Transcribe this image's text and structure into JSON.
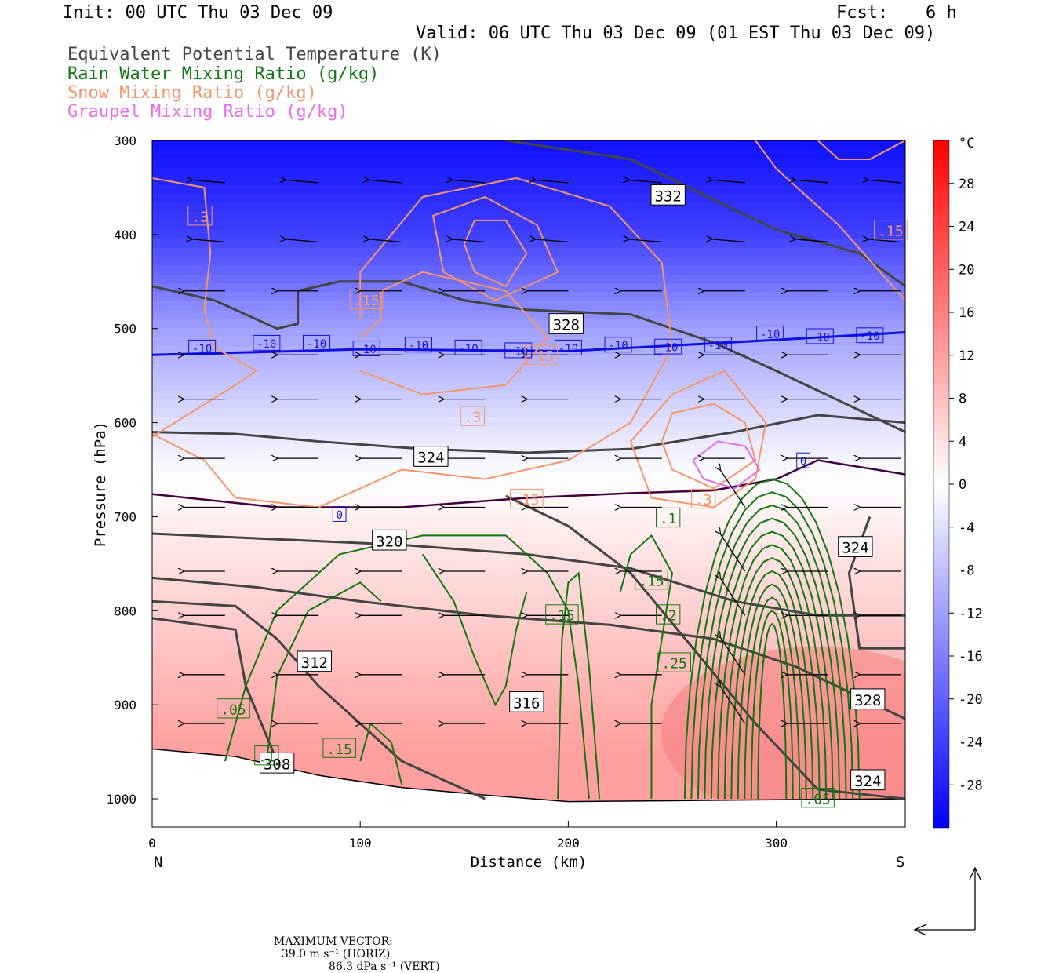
{
  "header": {
    "init": "Init: 00 UTC Thu 03 Dec 09",
    "fcst_label": "Fcst:",
    "fcst_value": "6 h",
    "valid": "Valid: 06 UTC Thu 03 Dec 09 (01 EST Thu 03 Dec 09)",
    "legend": [
      {
        "text": "Equivalent Potential Temperature (K)",
        "color": "#444444"
      },
      {
        "text": "Rain Water Mixing Ratio (g/kg)",
        "color": "#117711"
      },
      {
        "text": "Snow Mixing Ratio (g/kg)",
        "color": "#f4956a"
      },
      {
        "text": "Graupel Mixing Ratio (g/kg)",
        "color": "#e86ee8"
      }
    ]
  },
  "footer": {
    "max_vector_label": "MAXIMUM VECTOR:",
    "horiz": "39.0 m s⁻¹ (HORIZ)",
    "vert": "86.3 dPa s⁻¹ (VERT)"
  },
  "chart_data": {
    "type": "cross-section",
    "xlabel": "Distance (km)",
    "ylabel": "Pressure (hPa)",
    "xlim": [
      0,
      362
    ],
    "ylim": [
      1030,
      300
    ],
    "x_ticks": [
      0,
      100,
      200,
      300
    ],
    "y_ticks": [
      300,
      400,
      500,
      600,
      700,
      800,
      900,
      1000
    ],
    "x_end_labels": {
      "left": "N",
      "right": "S"
    },
    "colorbar": {
      "unit": "°C",
      "range": [
        -32,
        32
      ],
      "tick_labels": [
        "28",
        "24",
        "20",
        "16",
        "12",
        "8",
        "4",
        "0",
        "-4",
        "-8",
        "-12",
        "-16",
        "-20",
        "-24",
        "-28"
      ],
      "tick_values": [
        28,
        24,
        20,
        16,
        12,
        8,
        4,
        0,
        -4,
        -8,
        -12,
        -16,
        -20,
        -24,
        -28
      ],
      "cold_color": "#0000ff",
      "warm_color": "#ff0000"
    },
    "temperature_fill_layers": [
      {
        "p": 300,
        "t": -30
      },
      {
        "p": 400,
        "t": -24
      },
      {
        "p": 500,
        "t": -12
      },
      {
        "p": 600,
        "t": -4
      },
      {
        "p": 660,
        "t": 0
      },
      {
        "p": 750,
        "t": 4
      },
      {
        "p": 850,
        "t": 8
      },
      {
        "p": 950,
        "t": 12
      }
    ],
    "isotherm_labels": [
      {
        "x": 24,
        "p": 521,
        "text": "-10"
      },
      {
        "x": 55,
        "p": 516,
        "text": "-10"
      },
      {
        "x": 79,
        "p": 516,
        "text": "-10"
      },
      {
        "x": 103,
        "p": 522,
        "text": "-10"
      },
      {
        "x": 128,
        "p": 518,
        "text": "-10"
      },
      {
        "x": 152,
        "p": 521,
        "text": "-10"
      },
      {
        "x": 176,
        "p": 524,
        "text": "-10"
      },
      {
        "x": 200,
        "p": 521,
        "text": "-10"
      },
      {
        "x": 224,
        "p": 518,
        "text": "-10"
      },
      {
        "x": 248,
        "p": 520,
        "text": "-10"
      },
      {
        "x": 272,
        "p": 518,
        "text": "-10"
      },
      {
        "x": 297,
        "p": 506,
        "text": "-10"
      },
      {
        "x": 321,
        "p": 509,
        "text": "-10"
      },
      {
        "x": 345,
        "p": 508,
        "text": "-10"
      },
      {
        "x": 90,
        "p": 698,
        "text": "0"
      },
      {
        "x": 313,
        "p": 641,
        "text": "0"
      }
    ],
    "theta_e_labels": [
      {
        "x": 248,
        "p": 359,
        "text": "332"
      },
      {
        "x": 199,
        "p": 496,
        "text": "328"
      },
      {
        "x": 134,
        "p": 637,
        "text": "324"
      },
      {
        "x": 114,
        "p": 726,
        "text": "320"
      },
      {
        "x": 338,
        "p": 733,
        "text": "324"
      },
      {
        "x": 78,
        "p": 855,
        "text": "312"
      },
      {
        "x": 180,
        "p": 898,
        "text": "316"
      },
      {
        "x": 344,
        "p": 895,
        "text": "328"
      },
      {
        "x": 60,
        "p": 963,
        "text": "308"
      },
      {
        "x": 344,
        "p": 981,
        "text": "324"
      }
    ],
    "snow_labels": [
      {
        "x": 23,
        "p": 381,
        "text": ".3"
      },
      {
        "x": 355,
        "p": 396,
        "text": ".15"
      },
      {
        "x": 103,
        "p": 470,
        "text": ".15"
      },
      {
        "x": 187,
        "p": 529,
        "text": ".15"
      },
      {
        "x": 154,
        "p": 594,
        "text": ".3"
      },
      {
        "x": 180,
        "p": 682,
        "text": ".15"
      },
      {
        "x": 265,
        "p": 682,
        "text": ".3"
      }
    ],
    "rain_labels": [
      {
        "x": 248,
        "p": 702,
        "text": ".1"
      },
      {
        "x": 240,
        "p": 768,
        "text": ".15"
      },
      {
        "x": 197,
        "p": 805,
        "text": ".15"
      },
      {
        "x": 248,
        "p": 805,
        "text": ".2"
      },
      {
        "x": 251,
        "p": 856,
        "text": ".25"
      },
      {
        "x": 39,
        "p": 905,
        "text": ".05"
      },
      {
        "x": 90,
        "p": 947,
        "text": ".15"
      },
      {
        "x": 320,
        "p": 1000,
        "text": ".05"
      },
      {
        "x": 55,
        "p": 955,
        "text": ".1"
      }
    ],
    "ground_profile": [
      [
        0,
        947
      ],
      [
        40,
        955
      ],
      [
        80,
        975
      ],
      [
        120,
        988
      ],
      [
        160,
        996
      ],
      [
        200,
        1003
      ],
      [
        250,
        1002
      ],
      [
        300,
        1001
      ],
      [
        362,
        1000
      ]
    ],
    "wind_vectors_note": "leftward (northerly) horizontal winds throughout; strong ascent near 260-300 km"
  }
}
